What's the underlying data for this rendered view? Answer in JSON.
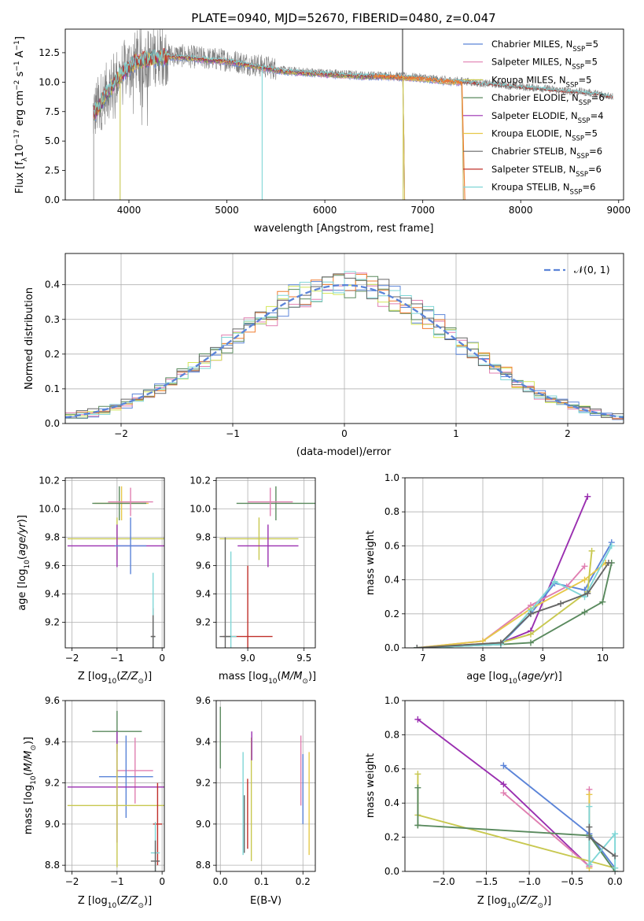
{
  "figure_title": "PLATE=0940, MJD=52670, FIBERID=0480, z=0.047",
  "colors": {
    "Chabrier MILES": "#5b84d8",
    "Salpeter MILES": "#e07fb1",
    "Kroupa MILES": "#c8c850",
    "Chabrier ELODIE": "#5a8a5e",
    "Salpeter ELODIE": "#9a2fb0",
    "Kroupa ELODIE": "#e6c84a",
    "Chabrier STELIB": "#666666",
    "Salpeter STELIB": "#c0302a",
    "Kroupa STELIB": "#7fd6d6",
    "data": "#808080",
    "orange": "#f07d32",
    "lime": "#d4e75a",
    "gauss": "#5b84d8"
  },
  "chart_data": [
    {
      "id": "spectrum",
      "type": "line",
      "title": "PLATE=0940, MJD=52670, FIBERID=0480, z=0.047",
      "xlabel": "wavelength [Angstrom, rest frame]",
      "ylabel": "Flux [f_λ 10^-17 erg cm^-2 s^-1 A^-1]",
      "xlim": [
        3350,
        9050
      ],
      "ylim": [
        0,
        14.5
      ],
      "xticks": [
        4000,
        5000,
        6000,
        7000,
        8000,
        9000
      ],
      "yticks": [
        0.0,
        2.5,
        5.0,
        7.5,
        10.0,
        12.5
      ],
      "legend_position": "upper right",
      "legend": [
        {
          "base": "Chabrier MILES, N",
          "sub": "SSP",
          "tail": "=5"
        },
        {
          "base": "Salpeter MILES, N",
          "sub": "SSP",
          "tail": "=5"
        },
        {
          "base": "Kroupa MILES, N",
          "sub": "SSP",
          "tail": "=5"
        },
        {
          "base": "Chabrier ELODIE, N",
          "sub": "SSP",
          "tail": "=6"
        },
        {
          "base": "Salpeter ELODIE, N",
          "sub": "SSP",
          "tail": "=4"
        },
        {
          "base": "Kroupa ELODIE, N",
          "sub": "SSP",
          "tail": "=5"
        },
        {
          "base": "Chabrier STELIB, N",
          "sub": "SSP",
          "tail": "=6"
        },
        {
          "base": "Salpeter STELIB, N",
          "sub": "SSP",
          "tail": "=6"
        },
        {
          "base": "Kroupa STELIB, N",
          "sub": "SSP",
          "tail": "=6"
        }
      ],
      "data_envelope": {
        "x": [
          3630,
          3700,
          3800,
          3900,
          4000,
          4100,
          4200,
          4400,
          4600,
          4800,
          5000,
          5200,
          5400,
          5600,
          5800,
          6000,
          6200,
          6400,
          6600,
          6800,
          7000,
          7200,
          7400,
          7600,
          7800,
          8000,
          8200,
          8400,
          8600,
          8800,
          8940
        ],
        "y": [
          7.2,
          8.2,
          9.5,
          10.6,
          11.4,
          12.0,
          12.1,
          12.3,
          12.2,
          12.0,
          11.9,
          11.6,
          11.3,
          11.0,
          10.9,
          10.8,
          10.7,
          10.6,
          10.6,
          10.5,
          10.4,
          10.2,
          10.1,
          9.9,
          9.8,
          9.6,
          9.5,
          9.3,
          9.2,
          9.0,
          8.8
        ]
      },
      "model_end_wavelength": {
        "MILES": 7400,
        "ELODIE": 6800,
        "STELIB": 8940
      }
    },
    {
      "id": "residuals",
      "type": "histogram",
      "xlabel": "(data-model)/error",
      "ylabel": "Normed distribution",
      "xlim": [
        -2.5,
        2.5
      ],
      "ylim": [
        0,
        0.49
      ],
      "xticks": [
        -2,
        -1,
        0,
        1,
        2
      ],
      "yticks": [
        0.0,
        0.1,
        0.2,
        0.3,
        0.4
      ],
      "legend_position": "upper right",
      "legend": [
        {
          "label": "𝒩(0, 1)"
        }
      ],
      "bin_width": 0.1
    },
    {
      "id": "age_vs_Z",
      "type": "errorbar",
      "xlabel": "Z [log10(Z/Z⊙)]",
      "ylabel": "age [log10(age/yr)]",
      "xlim": [
        -2.15,
        0.05
      ],
      "ylim": [
        9.02,
        10.22
      ],
      "xticks": [
        -2,
        -1,
        0
      ],
      "yticks": [
        9.2,
        9.4,
        9.6,
        9.8,
        10.0,
        10.2
      ],
      "points": [
        {
          "model": "Kroupa ELODIE",
          "x": -0.9,
          "y": 10.04,
          "xerr": 0.6,
          "yerr": 0.12
        },
        {
          "model": "Chabrier ELODIE",
          "x": -0.95,
          "y": 10.04,
          "xerr": 0.6,
          "yerr": 0.12
        },
        {
          "model": "Salpeter MILES",
          "x": -0.7,
          "y": 10.05,
          "xerr": 0.5,
          "yerr": 0.1
        },
        {
          "model": "Kroupa MILES",
          "x": -1.0,
          "y": 9.79,
          "xerr": 1.1,
          "yerr": 0.15
        },
        {
          "model": "Salpeter ELODIE",
          "x": -1.0,
          "y": 9.74,
          "xerr": 1.1,
          "yerr": 0.15
        },
        {
          "model": "Chabrier MILES",
          "x": -0.7,
          "y": 9.74,
          "xerr": 0.35,
          "yerr": 0.2
        },
        {
          "model": "Salpeter STELIB",
          "x": -0.2,
          "y": 9.1,
          "xerr": 0.05,
          "yerr": 0.2
        },
        {
          "model": "Kroupa STELIB",
          "x": -0.2,
          "y": 9.1,
          "xerr": 0.05,
          "yerr": 0.45
        },
        {
          "model": "Chabrier STELIB",
          "x": -0.2,
          "y": 9.1,
          "xerr": 0.05,
          "yerr": 0.15
        }
      ]
    },
    {
      "id": "age_vs_mass",
      "type": "errorbar",
      "xlabel": "mass [log10(M/M⊙)]",
      "ylabel": "",
      "xlim": [
        8.72,
        9.6
      ],
      "ylim": [
        9.02,
        10.22
      ],
      "xticks": [
        9.0,
        9.5
      ],
      "yticks": [
        9.2,
        9.4,
        9.6,
        9.8,
        10.0,
        10.2
      ],
      "points": [
        {
          "model": "Chabrier ELODIE",
          "x": 9.25,
          "y": 10.04,
          "xerr": 0.35,
          "yerr": 0.12
        },
        {
          "model": "Salpeter MILES",
          "x": 9.2,
          "y": 10.05,
          "xerr": 0.2,
          "yerr": 0.1
        },
        {
          "model": "Kroupa MILES",
          "x": 9.1,
          "y": 9.79,
          "xerr": 0.35,
          "yerr": 0.15
        },
        {
          "model": "Salpeter ELODIE",
          "x": 9.18,
          "y": 9.74,
          "xerr": 0.27,
          "yerr": 0.15
        },
        {
          "model": "Salpeter STELIB",
          "x": 9.0,
          "y": 9.1,
          "xerr": 0.22,
          "yerr": 0.5
        },
        {
          "model": "Kroupa STELIB",
          "x": 8.85,
          "y": 9.1,
          "xerr": 0.05,
          "yerr": 0.6
        },
        {
          "model": "Chabrier STELIB",
          "x": 8.8,
          "y": 9.1,
          "xerr": 0.05,
          "yerr": 0.7
        }
      ]
    },
    {
      "id": "weight_vs_age",
      "type": "line",
      "xlabel": "age [log10(age/yr)]",
      "ylabel": "mass weight",
      "xlim": [
        6.7,
        10.35
      ],
      "ylim": [
        0,
        1
      ],
      "xticks": [
        7,
        8,
        9,
        10
      ],
      "yticks": [
        0.0,
        0.2,
        0.4,
        0.6,
        0.8,
        1.0
      ],
      "series": [
        {
          "model": "Salpeter ELODIE",
          "x": [
            6.9,
            8.3,
            8.8,
            9.75
          ],
          "y": [
            0.0,
            0.03,
            0.1,
            0.89
          ]
        },
        {
          "model": "Chabrier MILES",
          "x": [
            6.9,
            8.3,
            8.8,
            9.2,
            9.7,
            10.15
          ],
          "y": [
            0.0,
            0.02,
            0.2,
            0.38,
            0.34,
            0.62
          ]
        },
        {
          "model": "Salpeter MILES",
          "x": [
            6.9,
            8.0,
            8.8,
            9.4,
            9.7
          ],
          "y": [
            0.0,
            0.04,
            0.25,
            0.36,
            0.48
          ]
        },
        {
          "model": "Kroupa ELODIE",
          "x": [
            6.9,
            8.0,
            8.8,
            9.7,
            10.05
          ],
          "y": [
            0.0,
            0.04,
            0.23,
            0.4,
            0.5
          ]
        },
        {
          "model": "Kroupa MILES",
          "x": [
            6.9,
            8.3,
            8.8,
            9.75,
            9.82
          ],
          "y": [
            0.0,
            0.03,
            0.08,
            0.33,
            0.57
          ]
        },
        {
          "model": "Chabrier ELODIE",
          "x": [
            6.9,
            8.3,
            8.8,
            9.7,
            10.0,
            10.15
          ],
          "y": [
            0.0,
            0.02,
            0.03,
            0.21,
            0.27,
            0.5
          ]
        },
        {
          "model": "Kroupa STELIB",
          "x": [
            6.9,
            8.3,
            8.8,
            9.2,
            9.7,
            10.15
          ],
          "y": [
            0.0,
            0.02,
            0.22,
            0.39,
            0.3,
            0.6
          ]
        },
        {
          "model": "Chabrier STELIB",
          "x": [
            6.9,
            8.3,
            8.8,
            9.3,
            9.75,
            10.1
          ],
          "y": [
            0.0,
            0.03,
            0.2,
            0.26,
            0.32,
            0.5
          ]
        }
      ]
    },
    {
      "id": "mass_vs_Z",
      "type": "errorbar",
      "xlabel": "Z [log10(Z/Z⊙)]",
      "ylabel": "mass [log10(M/M⊙)]",
      "xlim": [
        -2.15,
        0.05
      ],
      "ylim": [
        8.77,
        9.6
      ],
      "xticks": [
        -2,
        -1,
        0
      ],
      "yticks": [
        8.8,
        9.0,
        9.2,
        9.4,
        9.6
      ],
      "points": [
        {
          "model": "Chabrier ELODIE",
          "x": -1.0,
          "y": 9.45,
          "xerr": 0.55,
          "yerr": 0.1
        },
        {
          "model": "Salpeter MILES",
          "x": -0.6,
          "y": 9.26,
          "xerr": 0.4,
          "yerr": 0.16
        },
        {
          "model": "Chabrier MILES",
          "x": -0.8,
          "y": 9.23,
          "xerr": 0.6,
          "yerr": 0.2
        },
        {
          "model": "Salpeter ELODIE",
          "x": -1.0,
          "y": 9.18,
          "xerr": 1.1,
          "yerr": 0.27
        },
        {
          "model": "Kroupa MILES",
          "x": -1.0,
          "y": 9.09,
          "xerr": 1.1,
          "yerr": 0.3
        },
        {
          "model": "Salpeter STELIB",
          "x": -0.1,
          "y": 9.0,
          "xerr": 0.1,
          "yerr": 0.2
        },
        {
          "model": "Kroupa STELIB",
          "x": -0.15,
          "y": 8.86,
          "xerr": 0.1,
          "yerr": 0.15
        },
        {
          "model": "Chabrier STELIB",
          "x": -0.15,
          "y": 8.82,
          "xerr": 0.1,
          "yerr": 0.1
        }
      ]
    },
    {
      "id": "mass_vs_EBV",
      "type": "errorbar",
      "xlabel": "E(B-V)",
      "ylabel": "",
      "xlim": [
        -0.01,
        0.23
      ],
      "ylim": [
        8.77,
        9.6
      ],
      "xticks": [
        0.0,
        0.1,
        0.2
      ],
      "yticks": [
        8.8,
        9.0,
        9.2,
        9.4,
        9.6
      ],
      "points": [
        {
          "model": "Chabrier ELODIE",
          "x": 0.0,
          "y": 9.42,
          "xerr": 0,
          "yerr": 0.15
        },
        {
          "model": "Kroupa STELIB",
          "x": 0.055,
          "y": 9.1,
          "xerr": 0,
          "yerr": 0.25
        },
        {
          "model": "Chabrier STELIB",
          "x": 0.058,
          "y": 9.0,
          "xerr": 0,
          "yerr": 0.14
        },
        {
          "model": "Salpeter STELIB",
          "x": 0.066,
          "y": 9.05,
          "xerr": 0,
          "yerr": 0.17
        },
        {
          "model": "Kroupa MILES",
          "x": 0.075,
          "y": 9.12,
          "xerr": 0,
          "yerr": 0.3
        },
        {
          "model": "Salpeter ELODIE",
          "x": 0.076,
          "y": 9.38,
          "xerr": 0,
          "yerr": 0.07
        },
        {
          "model": "Salpeter MILES",
          "x": 0.195,
          "y": 9.26,
          "xerr": 0,
          "yerr": 0.17
        },
        {
          "model": "Chabrier MILES",
          "x": 0.2,
          "y": 9.17,
          "xerr": 0,
          "yerr": 0.17
        },
        {
          "model": "Kroupa ELODIE",
          "x": 0.215,
          "y": 9.1,
          "xerr": 0,
          "yerr": 0.25
        }
      ]
    },
    {
      "id": "weight_vs_Z",
      "type": "line",
      "xlabel": "Z [log10(Z/Z⊙)]",
      "ylabel": "mass weight",
      "xlim": [
        -2.45,
        0.1
      ],
      "ylim": [
        0,
        1
      ],
      "xticks": [
        -2.0,
        -1.5,
        -1.0,
        -0.5,
        0.0
      ],
      "yticks": [
        0.0,
        0.2,
        0.4,
        0.6,
        0.8,
        1.0
      ],
      "series": [
        {
          "model": "Salpeter ELODIE",
          "x": [
            -2.3,
            -1.3,
            -0.3
          ],
          "y": [
            0.89,
            0.51,
            0.03
          ]
        },
        {
          "model": "Chabrier MILES",
          "x": [
            -1.3,
            -0.3,
            0.0
          ],
          "y": [
            0.62,
            0.22,
            0.02
          ]
        },
        {
          "model": "Salpeter MILES",
          "x": [
            -1.3,
            -0.3,
            -0.3
          ],
          "y": [
            0.46,
            0.03,
            0.48
          ]
        },
        {
          "model": "Kroupa MILES",
          "x": [
            -2.3,
            -2.3,
            0.0
          ],
          "y": [
            0.57,
            0.33,
            0.02
          ]
        },
        {
          "model": "Chabrier ELODIE",
          "x": [
            -2.3,
            -2.3,
            -2.3,
            -0.3,
            0.0
          ],
          "y": [
            0.49,
            0.27,
            0.27,
            0.21,
            0.0
          ]
        },
        {
          "model": "Kroupa ELODIE",
          "x": [
            -0.3,
            -0.3
          ],
          "y": [
            0.45,
            0.02
          ]
        },
        {
          "model": "Kroupa STELIB",
          "x": [
            -0.3,
            -0.3,
            0.0,
            0.0
          ],
          "y": [
            0.38,
            0.04,
            0.22,
            0.02
          ]
        },
        {
          "model": "Chabrier STELIB",
          "x": [
            -0.3,
            -0.3,
            0.0
          ],
          "y": [
            0.26,
            0.2,
            0.09
          ]
        }
      ]
    }
  ]
}
